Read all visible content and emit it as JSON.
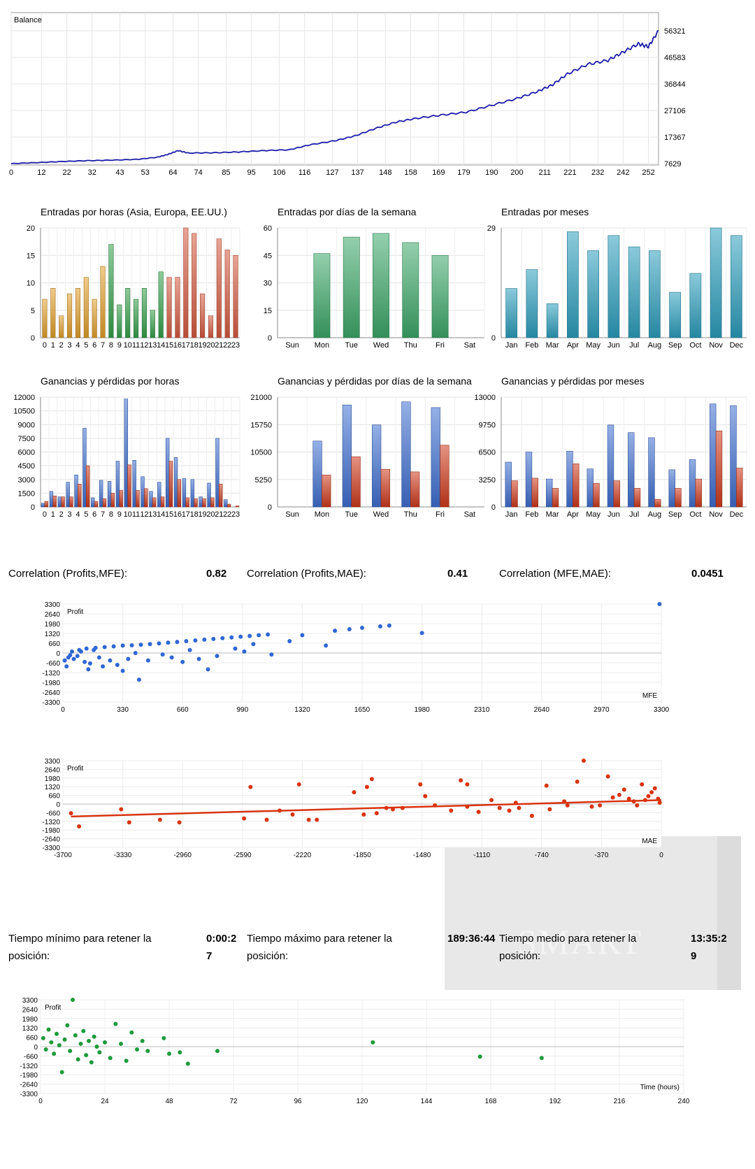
{
  "colors": {
    "balance": "#1c1ca8",
    "hours_asia": "#e3a02a",
    "hours_europe": "#34a14a",
    "hours_us": "#d75a40",
    "weekday": "#3da869",
    "month": "#2c9fbd",
    "profit": "#3f6fd1",
    "loss": "#cf3a1c",
    "mfe_points": "#2f67d3",
    "mae_points": "#d8340f",
    "time_points": "#1e9a3a"
  },
  "balance": {
    "label": "Balance",
    "x_ticks": [
      "0",
      "12",
      "22",
      "32",
      "43",
      "53",
      "64",
      "74",
      "85",
      "95",
      "106",
      "116",
      "127",
      "137",
      "148",
      "158",
      "169",
      "179",
      "190",
      "200",
      "211",
      "221",
      "232",
      "242",
      "252"
    ],
    "y_ticks": [
      "56321",
      "46583",
      "36844",
      "27106",
      "17367",
      "7629"
    ],
    "ylim": [
      7629,
      56321
    ],
    "x_max": 256,
    "points": [
      [
        0,
        7629
      ],
      [
        10,
        8000
      ],
      [
        20,
        8400
      ],
      [
        30,
        8700
      ],
      [
        40,
        8900
      ],
      [
        50,
        9200
      ],
      [
        58,
        10000
      ],
      [
        62,
        11000
      ],
      [
        66,
        12400
      ],
      [
        70,
        11500
      ],
      [
        80,
        11600
      ],
      [
        90,
        11900
      ],
      [
        100,
        12400
      ],
      [
        110,
        12700
      ],
      [
        118,
        14500
      ],
      [
        128,
        16000
      ],
      [
        136,
        17800
      ],
      [
        144,
        20500
      ],
      [
        152,
        22800
      ],
      [
        160,
        24200
      ],
      [
        170,
        25400
      ],
      [
        180,
        26500
      ],
      [
        190,
        29000
      ],
      [
        200,
        31500
      ],
      [
        208,
        34000
      ],
      [
        214,
        36500
      ],
      [
        220,
        40500
      ],
      [
        228,
        44000
      ],
      [
        236,
        45500
      ],
      [
        242,
        48500
      ],
      [
        248,
        51500
      ],
      [
        252,
        50500
      ],
      [
        256,
        56321
      ]
    ]
  },
  "entries_hours": {
    "title": "Entradas por horas (Asia, Europa, EE.UU.)",
    "categories": [
      "0",
      "1",
      "2",
      "3",
      "4",
      "5",
      "6",
      "7",
      "8",
      "9",
      "10",
      "11",
      "12",
      "13",
      "14",
      "15",
      "16",
      "17",
      "18",
      "19",
      "20",
      "21",
      "22",
      "23"
    ],
    "values": [
      7,
      9,
      4,
      8,
      9,
      11,
      7,
      13,
      17,
      6,
      9,
      7,
      9,
      5,
      12,
      11,
      11,
      20,
      19,
      8,
      4,
      18,
      16,
      15
    ],
    "y_ticks": [
      "20",
      "15",
      "10",
      "5",
      "0"
    ],
    "ylim": [
      0,
      20
    ]
  },
  "entries_days": {
    "title": "Entradas por días de la semana",
    "categories": [
      "Sun",
      "Mon",
      "Tue",
      "Wed",
      "Thu",
      "Fri",
      "Sat"
    ],
    "values": [
      0,
      46,
      55,
      57,
      52,
      45,
      0
    ],
    "y_ticks": [
      "60",
      "45",
      "30",
      "15",
      "0"
    ],
    "ylim": [
      0,
      60
    ]
  },
  "entries_months": {
    "title": "Entradas por meses",
    "categories": [
      "Jan",
      "Feb",
      "Mar",
      "Apr",
      "May",
      "Jun",
      "Jul",
      "Aug",
      "Sep",
      "Oct",
      "Nov",
      "Dec"
    ],
    "values": [
      13,
      18,
      9,
      28,
      23,
      27,
      24,
      23,
      12,
      17,
      29,
      27
    ],
    "y_ticks": [
      "29",
      "0"
    ],
    "ylim": [
      0,
      29
    ]
  },
  "pl_hours": {
    "title": "Ganancias y pérdidas por horas",
    "categories": [
      "0",
      "1",
      "2",
      "3",
      "4",
      "5",
      "6",
      "7",
      "8",
      "9",
      "10",
      "11",
      "12",
      "13",
      "14",
      "15",
      "16",
      "17",
      "18",
      "19",
      "20",
      "21",
      "22",
      "23"
    ],
    "profits": [
      400,
      1700,
      1100,
      2700,
      3500,
      8600,
      1000,
      2900,
      2800,
      5000,
      11800,
      5100,
      3300,
      1700,
      2700,
      7500,
      5400,
      3100,
      3000,
      1100,
      2600,
      7500,
      800,
      0
    ],
    "losses": [
      600,
      1200,
      1100,
      1100,
      2500,
      4500,
      600,
      900,
      1500,
      1800,
      4600,
      1800,
      2000,
      1000,
      1100,
      5000,
      3000,
      1000,
      900,
      900,
      1000,
      2500,
      300,
      100
    ],
    "y_ticks": [
      "12000",
      "10500",
      "9000",
      "7500",
      "6000",
      "4500",
      "3000",
      "1500",
      "0"
    ],
    "ylim": [
      0,
      12000
    ]
  },
  "pl_days": {
    "title": "Ganancias y pérdidas por días de la semana",
    "categories": [
      "Sun",
      "Mon",
      "Tue",
      "Wed",
      "Thu",
      "Fri",
      "Sat"
    ],
    "profits": [
      0,
      12600,
      19500,
      15700,
      20100,
      19000,
      0
    ],
    "losses": [
      0,
      6100,
      9600,
      7200,
      6700,
      11800,
      0
    ],
    "y_ticks": [
      "21000",
      "15750",
      "10500",
      "5250",
      "0"
    ],
    "ylim": [
      0,
      21000
    ]
  },
  "pl_months": {
    "title": "Ganancias y pérdidas por meses",
    "categories": [
      "Jan",
      "Feb",
      "Mar",
      "Apr",
      "May",
      "Jun",
      "Jul",
      "Aug",
      "Sep",
      "Oct",
      "Nov",
      "Dec"
    ],
    "profits": [
      5300,
      6500,
      3300,
      6600,
      4500,
      9700,
      8800,
      8200,
      4400,
      5600,
      12200,
      12000
    ],
    "losses": [
      3100,
      3400,
      2200,
      5100,
      2800,
      3100,
      2200,
      900,
      2200,
      3300,
      9000,
      4600
    ],
    "y_ticks": [
      "13000",
      "9750",
      "6500",
      "3250",
      "0"
    ],
    "ylim": [
      0,
      13000
    ]
  },
  "correlations": [
    {
      "label": "Correlation (Profits,MFE):",
      "value": "0.82"
    },
    {
      "label": "Correlation (Profits,MAE):",
      "value": "0.41"
    },
    {
      "label": "Correlation (MFE,MAE):",
      "value": "0.0451"
    }
  ],
  "mfe_scatter": {
    "ylabel": "Profit",
    "xlabel": "MFE",
    "x_ticks": [
      "0",
      "330",
      "660",
      "990",
      "1320",
      "1650",
      "1980",
      "2310",
      "2640",
      "2970",
      "3300"
    ],
    "y_ticks": [
      "3300",
      "2640",
      "1980",
      "1320",
      "660",
      "0",
      "-660",
      "-1320",
      "-1980",
      "-2640",
      "-3300"
    ],
    "xlim": [
      0,
      3300
    ],
    "ylim": [
      -3300,
      3300
    ],
    "points": [
      [
        10,
        -500
      ],
      [
        20,
        -900
      ],
      [
        30,
        -300
      ],
      [
        40,
        -150
      ],
      [
        60,
        -400
      ],
      [
        80,
        -200
      ],
      [
        100,
        100
      ],
      [
        120,
        -600
      ],
      [
        140,
        -1100
      ],
      [
        150,
        -700
      ],
      [
        170,
        200
      ],
      [
        200,
        -300
      ],
      [
        220,
        -900
      ],
      [
        260,
        -500
      ],
      [
        300,
        -800
      ],
      [
        330,
        -1200
      ],
      [
        360,
        -400
      ],
      [
        400,
        0
      ],
      [
        420,
        -1800
      ],
      [
        470,
        -500
      ],
      [
        550,
        -100
      ],
      [
        600,
        -300
      ],
      [
        660,
        -600
      ],
      [
        700,
        200
      ],
      [
        750,
        -400
      ],
      [
        800,
        -1100
      ],
      [
        850,
        -200
      ],
      [
        950,
        300
      ],
      [
        1000,
        100
      ],
      [
        1050,
        600
      ],
      [
        1150,
        -100
      ],
      [
        1250,
        800
      ],
      [
        1320,
        1200
      ],
      [
        1450,
        500
      ],
      [
        1500,
        1500
      ],
      [
        1580,
        1600
      ],
      [
        1650,
        1700
      ],
      [
        1750,
        1800
      ],
      [
        1800,
        1850
      ],
      [
        1980,
        1350
      ],
      [
        3290,
        3300
      ],
      [
        50,
        100
      ],
      [
        90,
        200
      ],
      [
        130,
        300
      ],
      [
        180,
        350
      ],
      [
        230,
        400
      ],
      [
        280,
        450
      ],
      [
        330,
        500
      ],
      [
        380,
        520
      ],
      [
        430,
        560
      ],
      [
        480,
        600
      ],
      [
        530,
        650
      ],
      [
        580,
        700
      ],
      [
        630,
        750
      ],
      [
        680,
        800
      ],
      [
        730,
        850
      ],
      [
        780,
        900
      ],
      [
        830,
        950
      ],
      [
        880,
        1000
      ],
      [
        930,
        1050
      ],
      [
        980,
        1100
      ],
      [
        1030,
        1150
      ],
      [
        1080,
        1200
      ],
      [
        1130,
        1250
      ]
    ]
  },
  "mae_scatter": {
    "ylabel": "Profit",
    "xlabel": "MAE",
    "x_ticks": [
      "-3700",
      "-3330",
      "-2960",
      "-2590",
      "-2220",
      "-1850",
      "-1480",
      "-1110",
      "-740",
      "-370",
      "0"
    ],
    "y_ticks": [
      "3300",
      "2640",
      "1980",
      "1320",
      "660",
      "0",
      "-660",
      "-1320",
      "-1980",
      "-2640",
      "-3300"
    ],
    "xlim": [
      -3700,
      0
    ],
    "ylim": [
      -3300,
      3300
    ],
    "trend": [
      [
        -3650,
        -950
      ],
      [
        0,
        300
      ]
    ],
    "points": [
      [
        -3650,
        -700
      ],
      [
        -3600,
        -1700
      ],
      [
        -3340,
        -400
      ],
      [
        -3290,
        -1400
      ],
      [
        -3100,
        -1200
      ],
      [
        -2980,
        -1400
      ],
      [
        -2580,
        -1100
      ],
      [
        -2540,
        1300
      ],
      [
        -2440,
        -1200
      ],
      [
        -2360,
        -500
      ],
      [
        -2280,
        -800
      ],
      [
        -2240,
        1500
      ],
      [
        -2180,
        -1200
      ],
      [
        -2130,
        -1200
      ],
      [
        -1900,
        900
      ],
      [
        -1840,
        -800
      ],
      [
        -1820,
        1300
      ],
      [
        -1790,
        1900
      ],
      [
        -1760,
        -700
      ],
      [
        -1700,
        -300
      ],
      [
        -1660,
        -400
      ],
      [
        -1490,
        1500
      ],
      [
        -1460,
        600
      ],
      [
        -1300,
        -500
      ],
      [
        -1240,
        1800
      ],
      [
        -1200,
        1500
      ],
      [
        -1130,
        -600
      ],
      [
        -1050,
        300
      ],
      [
        -940,
        -500
      ],
      [
        -880,
        -300
      ],
      [
        -800,
        -900
      ],
      [
        -710,
        1400
      ],
      [
        -690,
        -400
      ],
      [
        -580,
        -100
      ],
      [
        -520,
        1700
      ],
      [
        -480,
        3300
      ],
      [
        -430,
        -200
      ],
      [
        -380,
        -100
      ],
      [
        -330,
        2100
      ],
      [
        -300,
        500
      ],
      [
        -260,
        700
      ],
      [
        -230,
        1100
      ],
      [
        -200,
        400
      ],
      [
        -170,
        200
      ],
      [
        -150,
        -100
      ],
      [
        -120,
        1500
      ],
      [
        -100,
        300
      ],
      [
        -80,
        600
      ],
      [
        -60,
        900
      ],
      [
        -40,
        1200
      ],
      [
        -20,
        400
      ],
      [
        -10,
        100
      ],
      [
        -600,
        200
      ],
      [
        -900,
        100
      ],
      [
        -1000,
        -300
      ],
      [
        -1200,
        -200
      ],
      [
        -1400,
        -100
      ],
      [
        -1600,
        -300
      ]
    ]
  },
  "hold_time": {
    "min_label": "Tiempo mínimo para retener la posición:",
    "min_value": "0:00:27",
    "max_label": "Tiempo máximo para retener la posición:",
    "max_value": "189:36:44",
    "avg_label": "Tiempo medio para retener la posición:",
    "avg_value": "13:35:29"
  },
  "time_scatter": {
    "ylabel": "Profit",
    "xlabel": "Time (hours)",
    "x_ticks": [
      "0",
      "24",
      "48",
      "72",
      "96",
      "120",
      "144",
      "168",
      "192",
      "216",
      "240"
    ],
    "y_ticks": [
      "3300",
      "2640",
      "1980",
      "1320",
      "660",
      "0",
      "-660",
      "-1320",
      "-1980",
      "-2640",
      "-3300"
    ],
    "xlim": [
      0,
      240
    ],
    "ylim": [
      -3300,
      3300
    ],
    "points": [
      [
        1,
        600
      ],
      [
        2,
        -200
      ],
      [
        3,
        1200
      ],
      [
        4,
        300
      ],
      [
        5,
        -500
      ],
      [
        6,
        900
      ],
      [
        7,
        100
      ],
      [
        8,
        -1800
      ],
      [
        9,
        500
      ],
      [
        10,
        1500
      ],
      [
        11,
        -300
      ],
      [
        12,
        3300
      ],
      [
        13,
        800
      ],
      [
        14,
        -900
      ],
      [
        15,
        200
      ],
      [
        16,
        1100
      ],
      [
        17,
        -600
      ],
      [
        18,
        400
      ],
      [
        19,
        -1100
      ],
      [
        20,
        700
      ],
      [
        21,
        0
      ],
      [
        22,
        -400
      ],
      [
        24,
        300
      ],
      [
        26,
        -800
      ],
      [
        28,
        1600
      ],
      [
        30,
        200
      ],
      [
        32,
        -1000
      ],
      [
        34,
        1000
      ],
      [
        36,
        -200
      ],
      [
        38,
        400
      ],
      [
        40,
        -300
      ],
      [
        46,
        600
      ],
      [
        48,
        -500
      ],
      [
        52,
        -400
      ],
      [
        55,
        -1200
      ],
      [
        66,
        -300
      ],
      [
        124,
        300
      ],
      [
        164,
        -700
      ],
      [
        187,
        -800
      ]
    ]
  },
  "watermark": {
    "text": "SMART"
  }
}
